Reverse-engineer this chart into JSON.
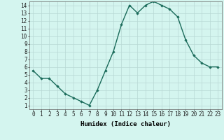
{
  "x": [
    0,
    1,
    2,
    3,
    4,
    5,
    6,
    7,
    8,
    9,
    10,
    11,
    12,
    13,
    14,
    15,
    16,
    17,
    18,
    19,
    20,
    21,
    22,
    23
  ],
  "y": [
    5.5,
    4.5,
    4.5,
    3.5,
    2.5,
    2.0,
    1.5,
    1.0,
    3.0,
    5.5,
    8.0,
    11.5,
    14.0,
    13.0,
    14.0,
    14.5,
    14.0,
    13.5,
    12.5,
    9.5,
    7.5,
    6.5,
    6.0,
    6.0
  ],
  "xlabel": "Humidex (Indice chaleur)",
  "xlim": [
    -0.5,
    23.5
  ],
  "ylim": [
    0.5,
    14.5
  ],
  "yticks": [
    1,
    2,
    3,
    4,
    5,
    6,
    7,
    8,
    9,
    10,
    11,
    12,
    13,
    14
  ],
  "xticks": [
    0,
    1,
    2,
    3,
    4,
    5,
    6,
    7,
    8,
    9,
    10,
    11,
    12,
    13,
    14,
    15,
    16,
    17,
    18,
    19,
    20,
    21,
    22,
    23
  ],
  "line_color": "#1a6b5a",
  "marker_color": "#1a6b5a",
  "bg_color": "#d4f5ef",
  "grid_color": "#b8d8d4",
  "axis_bg": "#d4f5ef",
  "xlabel_fontsize": 6.5,
  "tick_fontsize": 5.5,
  "marker": "D",
  "marker_size": 1.8,
  "line_width": 1.0
}
